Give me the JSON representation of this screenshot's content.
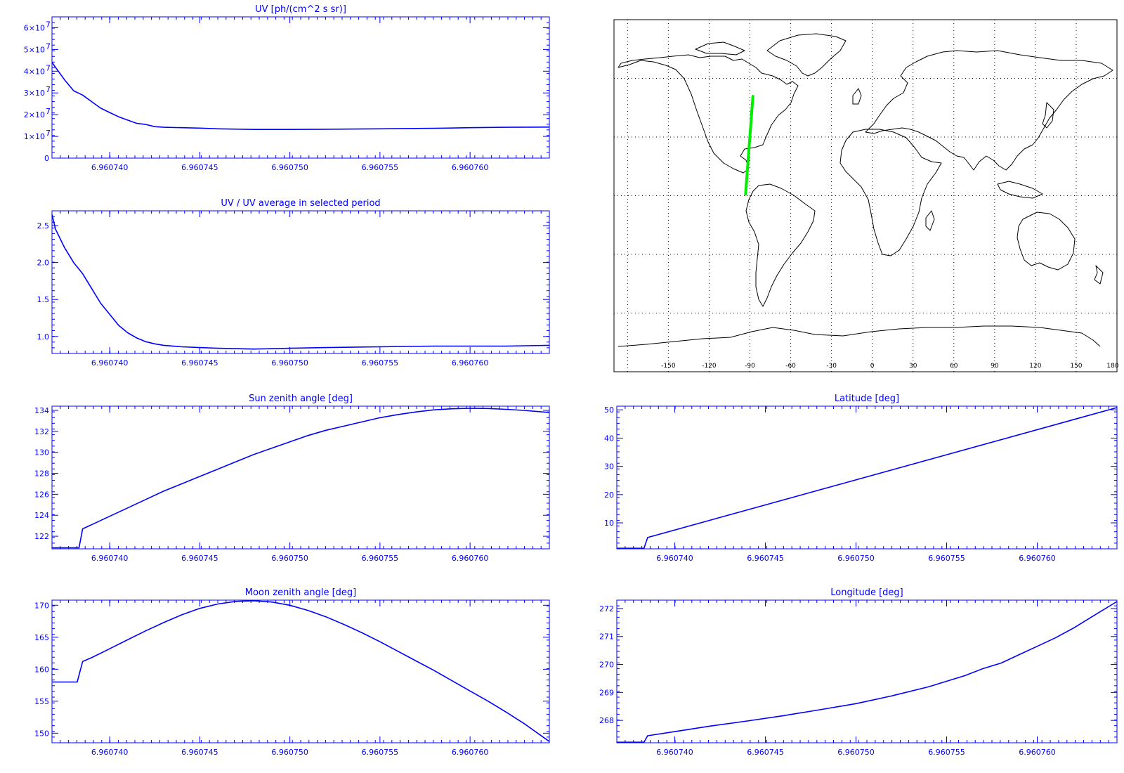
{
  "colors": {
    "axis": "#0000ff",
    "trace": "#0000ff",
    "map": "#000000",
    "track": "#00ee00"
  },
  "x_ticks": [
    "6.960740",
    "6.960745",
    "6.960750",
    "6.960755",
    "6.960760"
  ],
  "x_tick_values": [
    6.96074,
    6.960745,
    6.96075,
    6.960755,
    6.96076
  ],
  "map": {
    "lon_ticks": [
      "-150",
      "-120",
      "-90",
      "-60",
      "-30",
      "0",
      "30",
      "60",
      "90",
      "120",
      "150",
      "180"
    ],
    "lon_range": [
      -190,
      180
    ],
    "lat_range": [
      -90,
      90
    ],
    "grid_lons": [
      -180,
      -150,
      -120,
      -90,
      -60,
      -30,
      0,
      30,
      60,
      90,
      120,
      150
    ],
    "grid_lats": [
      -60,
      -30,
      0,
      30,
      60
    ],
    "track": [
      [
        -93.2,
        0.8
      ],
      [
        -87.8,
        50.8
      ]
    ]
  },
  "chart_data": [
    {
      "id": "uv",
      "type": "line",
      "title": "UV [ph/(cm^2 s sr)]",
      "xlim": [
        6.9607368,
        6.9607644
      ],
      "ylim": [
        0,
        65000000.0
      ],
      "log_scale": false,
      "y_ticks": [
        {
          "label": "0",
          "value": 0,
          "exp": ""
        },
        {
          "label": "1×10",
          "value": 10000000.0,
          "exp": "7"
        },
        {
          "label": "2×10",
          "value": 20000000.0,
          "exp": "7"
        },
        {
          "label": "3×10",
          "value": 30000000.0,
          "exp": "7"
        },
        {
          "label": "4×10",
          "value": 40000000.0,
          "exp": "7"
        },
        {
          "label": "5×10",
          "value": 50000000.0,
          "exp": "7"
        },
        {
          "label": "6×10",
          "value": 60000000.0,
          "exp": "7"
        }
      ],
      "x": [
        6.9607368,
        6.9607375,
        6.960738,
        6.9607385,
        6.960739,
        6.9607395,
        6.96074,
        6.9607405,
        6.960741,
        6.9607415,
        6.960742,
        6.9607425,
        6.960743,
        6.960744,
        6.960745,
        6.960746,
        6.960748,
        6.96075,
        6.960752,
        6.960755,
        6.960758,
        6.96076,
        6.960762,
        6.9607644
      ],
      "y": [
        44000000.0,
        36000000.0,
        31000000.0,
        29000000.0,
        26000000.0,
        23000000.0,
        21000000.0,
        19000000.0,
        17500000.0,
        16000000.0,
        15500000.0,
        14500000.0,
        14200000.0,
        14000000.0,
        13800000.0,
        13500000.0,
        13200000.0,
        13200000.0,
        13300000.0,
        13500000.0,
        13700000.0,
        14000000.0,
        14200000.0,
        14300000.0
      ]
    },
    {
      "id": "ratio",
      "type": "line",
      "title": "UV / UV average in selected period",
      "xlim": [
        6.9607368,
        6.9607644
      ],
      "ylim": [
        0.77,
        2.7
      ],
      "log_scale": false,
      "y_ticks": [
        {
          "label": "1.0",
          "value": 1.0,
          "exp": ""
        },
        {
          "label": "1.5",
          "value": 1.5,
          "exp": ""
        },
        {
          "label": "2.0",
          "value": 2.0,
          "exp": ""
        },
        {
          "label": "2.5",
          "value": 2.5,
          "exp": ""
        }
      ],
      "x": [
        6.9607368,
        6.960737,
        6.9607375,
        6.960738,
        6.9607385,
        6.960739,
        6.9607395,
        6.96074,
        6.9607405,
        6.960741,
        6.9607415,
        6.960742,
        6.9607425,
        6.960743,
        6.960744,
        6.960745,
        6.960746,
        6.960748,
        6.96075,
        6.960752,
        6.960755,
        6.960758,
        6.96076,
        6.960762,
        6.9607644
      ],
      "y": [
        2.65,
        2.45,
        2.2,
        2.0,
        1.85,
        1.65,
        1.45,
        1.3,
        1.15,
        1.05,
        0.98,
        0.93,
        0.9,
        0.88,
        0.86,
        0.85,
        0.84,
        0.83,
        0.84,
        0.85,
        0.86,
        0.87,
        0.87,
        0.87,
        0.88
      ]
    },
    {
      "id": "sza",
      "type": "line",
      "title": "Sun zenith angle [deg]",
      "xlim": [
        6.9607368,
        6.9607644
      ],
      "ylim": [
        120.8,
        134.4
      ],
      "log_scale": false,
      "y_ticks": [
        {
          "label": "122",
          "value": 122,
          "exp": ""
        },
        {
          "label": "124",
          "value": 124,
          "exp": ""
        },
        {
          "label": "126",
          "value": 126,
          "exp": ""
        },
        {
          "label": "128",
          "value": 128,
          "exp": ""
        },
        {
          "label": "130",
          "value": 130,
          "exp": ""
        },
        {
          "label": "132",
          "value": 132,
          "exp": ""
        },
        {
          "label": "134",
          "value": 134,
          "exp": ""
        }
      ],
      "x": [
        6.9607368,
        6.9607383,
        6.9607385,
        6.960739,
        6.96074,
        6.960741,
        6.960742,
        6.960743,
        6.960744,
        6.960745,
        6.960746,
        6.960747,
        6.960748,
        6.960749,
        6.96075,
        6.960751,
        6.960752,
        6.960753,
        6.960754,
        6.960755,
        6.960756,
        6.960757,
        6.960758,
        6.960759,
        6.96076,
        6.960761,
        6.960762,
        6.960763,
        6.9607644
      ],
      "y": [
        120.9,
        120.9,
        122.7,
        123.1,
        123.9,
        124.7,
        125.5,
        126.3,
        127.0,
        127.7,
        128.4,
        129.1,
        129.8,
        130.4,
        131.0,
        131.6,
        132.1,
        132.5,
        132.9,
        133.3,
        133.6,
        133.85,
        134.05,
        134.15,
        134.2,
        134.18,
        134.1,
        134.0,
        133.8
      ]
    },
    {
      "id": "lat",
      "type": "line",
      "title": "Latitude [deg]",
      "xlim": [
        6.9607368,
        6.9607644
      ],
      "ylim": [
        0.8,
        51.3
      ],
      "log_scale": false,
      "y_ticks": [
        {
          "label": "10",
          "value": 10,
          "exp": ""
        },
        {
          "label": "20",
          "value": 20,
          "exp": ""
        },
        {
          "label": "30",
          "value": 30,
          "exp": ""
        },
        {
          "label": "40",
          "value": 40,
          "exp": ""
        },
        {
          "label": "50",
          "value": 50,
          "exp": ""
        }
      ],
      "x": [
        6.9607368,
        6.9607383,
        6.9607385,
        6.9607644
      ],
      "y": [
        1.0,
        1.0,
        4.8,
        50.8
      ]
    },
    {
      "id": "mza",
      "type": "line",
      "title": "Moon zenith angle [deg]",
      "xlim": [
        6.9607368,
        6.9607644
      ],
      "ylim": [
        148.5,
        170.8
      ],
      "log_scale": false,
      "y_ticks": [
        {
          "label": "150",
          "value": 150,
          "exp": ""
        },
        {
          "label": "155",
          "value": 155,
          "exp": ""
        },
        {
          "label": "160",
          "value": 160,
          "exp": ""
        },
        {
          "label": "165",
          "value": 165,
          "exp": ""
        },
        {
          "label": "170",
          "value": 170,
          "exp": ""
        }
      ],
      "x": [
        6.9607368,
        6.9607382,
        6.9607385,
        6.960739,
        6.96074,
        6.960741,
        6.960742,
        6.960743,
        6.960744,
        6.960745,
        6.960746,
        6.960747,
        6.960748,
        6.960749,
        6.96075,
        6.960751,
        6.960752,
        6.960753,
        6.960754,
        6.960755,
        6.960756,
        6.960757,
        6.960758,
        6.960759,
        6.96076,
        6.960761,
        6.960762,
        6.960763,
        6.9607644
      ],
      "y": [
        158.0,
        158.0,
        161.2,
        161.8,
        163.2,
        164.6,
        166.0,
        167.3,
        168.5,
        169.5,
        170.2,
        170.6,
        170.7,
        170.5,
        170.0,
        169.2,
        168.2,
        167.0,
        165.7,
        164.3,
        162.8,
        161.3,
        159.8,
        158.2,
        156.6,
        155.0,
        153.3,
        151.5,
        148.7
      ]
    },
    {
      "id": "lon",
      "type": "line",
      "title": "Longitude [deg]",
      "xlim": [
        6.9607368,
        6.9607644
      ],
      "ylim": [
        267.2,
        272.3
      ],
      "log_scale": false,
      "y_ticks": [
        {
          "label": "268",
          "value": 268,
          "exp": ""
        },
        {
          "label": "269",
          "value": 269,
          "exp": ""
        },
        {
          "label": "270",
          "value": 270,
          "exp": ""
        },
        {
          "label": "271",
          "value": 271,
          "exp": ""
        },
        {
          "label": "272",
          "value": 272,
          "exp": ""
        }
      ],
      "x": [
        6.9607368,
        6.9607383,
        6.9607385,
        6.96074,
        6.960742,
        6.960744,
        6.960746,
        6.960748,
        6.96075,
        6.960752,
        6.960754,
        6.960756,
        6.960757,
        6.960758,
        6.960759,
        6.96076,
        6.960761,
        6.960762,
        6.960763,
        6.9607644
      ],
      "y": [
        267.22,
        267.22,
        267.45,
        267.6,
        267.8,
        267.98,
        268.17,
        268.38,
        268.6,
        268.88,
        269.2,
        269.6,
        269.85,
        270.05,
        270.35,
        270.65,
        270.95,
        271.3,
        271.7,
        272.25
      ]
    }
  ]
}
